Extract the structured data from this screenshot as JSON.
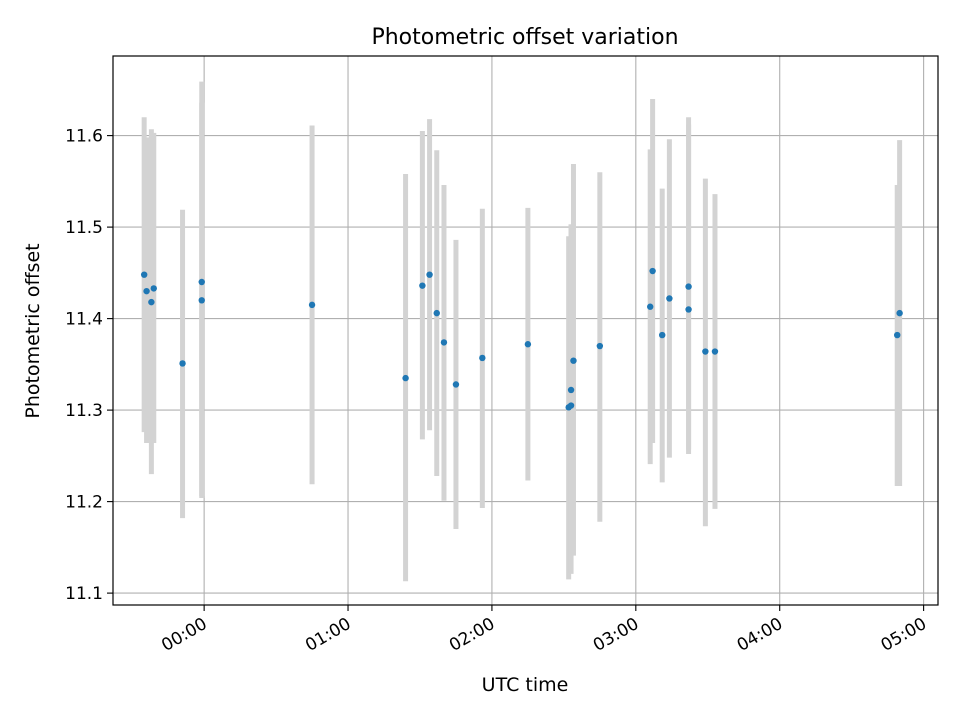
{
  "chart_data": {
    "type": "scatter",
    "title": "Photometric offset variation",
    "xlabel": "UTC time",
    "ylabel": "Photometric offset",
    "x_ticks": [
      "00:00",
      "01:00",
      "02:00",
      "03:00",
      "04:00",
      "05:00"
    ],
    "y_ticks": [
      "11.1",
      "11.2",
      "11.3",
      "11.4",
      "11.5",
      "11.6"
    ],
    "xlim": [
      "23:22",
      "05:06"
    ],
    "ylim": [
      11.087,
      11.687
    ],
    "grid": true,
    "errorbar_color": "#d3d3d3",
    "point_color": "#1f77b4",
    "points": [
      {
        "time": "23:35",
        "y": 11.448,
        "ylow": 11.276,
        "yhigh": 11.62
      },
      {
        "time": "23:36",
        "y": 11.43,
        "ylow": 11.264,
        "yhigh": 11.598
      },
      {
        "time": "23:38",
        "y": 11.418,
        "ylow": 11.23,
        "yhigh": 11.607
      },
      {
        "time": "23:39",
        "y": 11.433,
        "ylow": 11.264,
        "yhigh": 11.603
      },
      {
        "time": "23:51",
        "y": 11.351,
        "ylow": 11.182,
        "yhigh": 11.519
      },
      {
        "time": "23:59",
        "y": 11.44,
        "ylow": 11.204,
        "yhigh": 11.636
      },
      {
        "time": "23:59",
        "y": 11.42,
        "ylow": 11.206,
        "yhigh": 11.659
      },
      {
        "time": "00:45",
        "y": 11.415,
        "ylow": 11.219,
        "yhigh": 11.611
      },
      {
        "time": "01:24",
        "y": 11.335,
        "ylow": 11.113,
        "yhigh": 11.558
      },
      {
        "time": "01:31",
        "y": 11.436,
        "ylow": 11.268,
        "yhigh": 11.605
      },
      {
        "time": "01:34",
        "y": 11.448,
        "ylow": 11.278,
        "yhigh": 11.618
      },
      {
        "time": "01:37",
        "y": 11.406,
        "ylow": 11.228,
        "yhigh": 11.584
      },
      {
        "time": "01:40",
        "y": 11.374,
        "ylow": 11.201,
        "yhigh": 11.546
      },
      {
        "time": "01:45",
        "y": 11.328,
        "ylow": 11.17,
        "yhigh": 11.486
      },
      {
        "time": "01:56",
        "y": 11.357,
        "ylow": 11.193,
        "yhigh": 11.52
      },
      {
        "time": "02:15",
        "y": 11.372,
        "ylow": 11.223,
        "yhigh": 11.521
      },
      {
        "time": "02:32",
        "y": 11.303,
        "ylow": 11.115,
        "yhigh": 11.49
      },
      {
        "time": "02:33",
        "y": 11.305,
        "ylow": 11.121,
        "yhigh": 11.503
      },
      {
        "time": "02:33",
        "y": 11.322,
        "ylow": 11.148,
        "yhigh": 11.503
      },
      {
        "time": "02:34",
        "y": 11.354,
        "ylow": 11.141,
        "yhigh": 11.569
      },
      {
        "time": "02:45",
        "y": 11.37,
        "ylow": 11.178,
        "yhigh": 11.56
      },
      {
        "time": "03:06",
        "y": 11.413,
        "ylow": 11.241,
        "yhigh": 11.585
      },
      {
        "time": "03:07",
        "y": 11.452,
        "ylow": 11.264,
        "yhigh": 11.64
      },
      {
        "time": "03:11",
        "y": 11.382,
        "ylow": 11.221,
        "yhigh": 11.542
      },
      {
        "time": "03:14",
        "y": 11.422,
        "ylow": 11.248,
        "yhigh": 11.596
      },
      {
        "time": "03:22",
        "y": 11.435,
        "ylow": 11.252,
        "yhigh": 11.62
      },
      {
        "time": "03:22",
        "y": 11.41,
        "ylow": 11.257,
        "yhigh": 11.612
      },
      {
        "time": "03:29",
        "y": 11.364,
        "ylow": 11.173,
        "yhigh": 11.553
      },
      {
        "time": "03:33",
        "y": 11.364,
        "ylow": 11.192,
        "yhigh": 11.536
      },
      {
        "time": "04:49",
        "y": 11.382,
        "ylow": 11.217,
        "yhigh": 11.546
      },
      {
        "time": "04:50",
        "y": 11.406,
        "ylow": 11.217,
        "yhigh": 11.595
      }
    ]
  }
}
